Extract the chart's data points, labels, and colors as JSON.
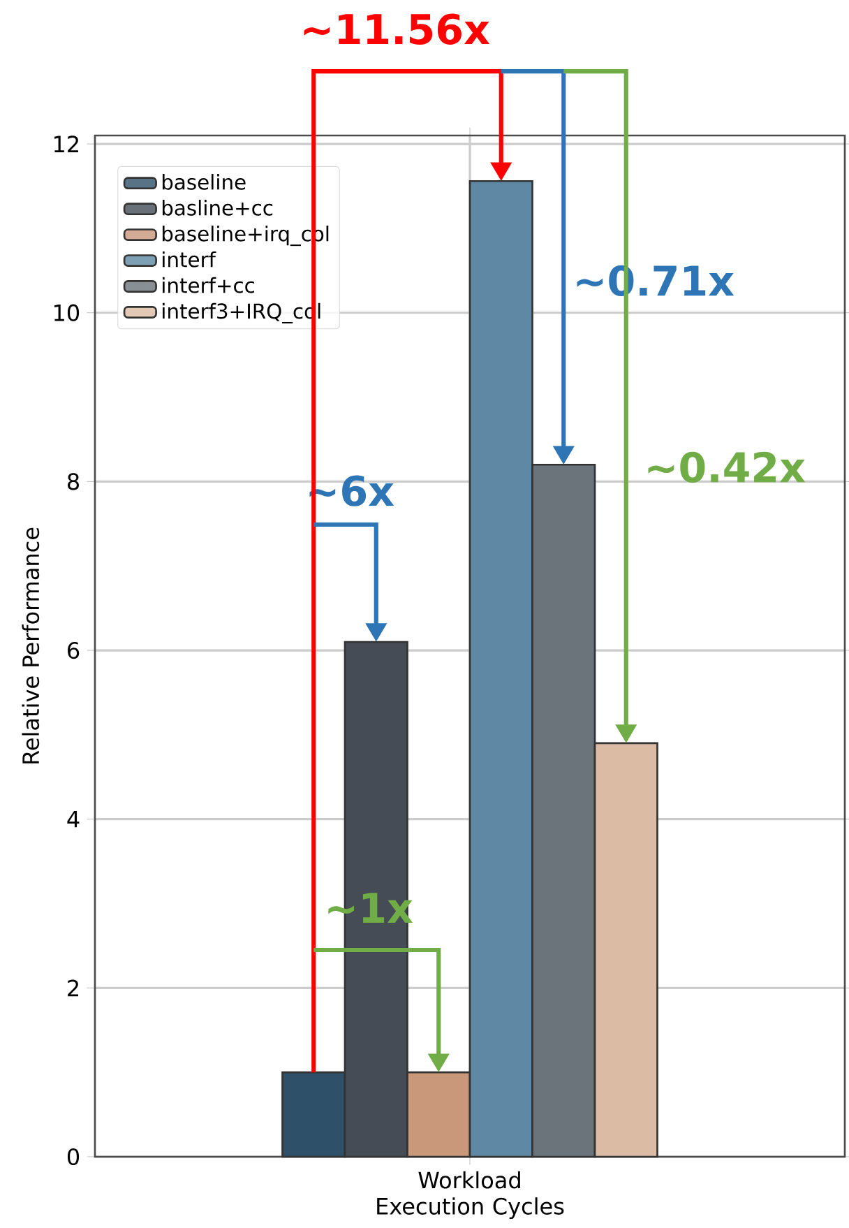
{
  "chart_data": {
    "type": "bar",
    "ylabel": "Relative Performance",
    "categories": [
      "Workload Execution Cycles"
    ],
    "series": [
      {
        "name": "baseline",
        "color": "#2e5068",
        "values": [
          1.0
        ]
      },
      {
        "name": "basline+cc",
        "color": "#454c55",
        "values": [
          6.1
        ]
      },
      {
        "name": "baseline+irq_col",
        "color": "#c9977a",
        "values": [
          1.0
        ]
      },
      {
        "name": "interf",
        "color": "#5e88a3",
        "values": [
          11.56
        ]
      },
      {
        "name": "interf+cc",
        "color": "#6b747b",
        "values": [
          8.2
        ]
      },
      {
        "name": "interf3+IRQ_col",
        "color": "#dcbba4",
        "values": [
          4.9
        ]
      }
    ],
    "ylim": [
      0,
      12.1
    ],
    "yticks": [
      0,
      2,
      4,
      6,
      8,
      10,
      12
    ],
    "grid": true,
    "legend": "top left",
    "annotations": [
      "~11.56x",
      "~6x",
      "~0.71x",
      "~0.42x",
      "~1x"
    ]
  }
}
